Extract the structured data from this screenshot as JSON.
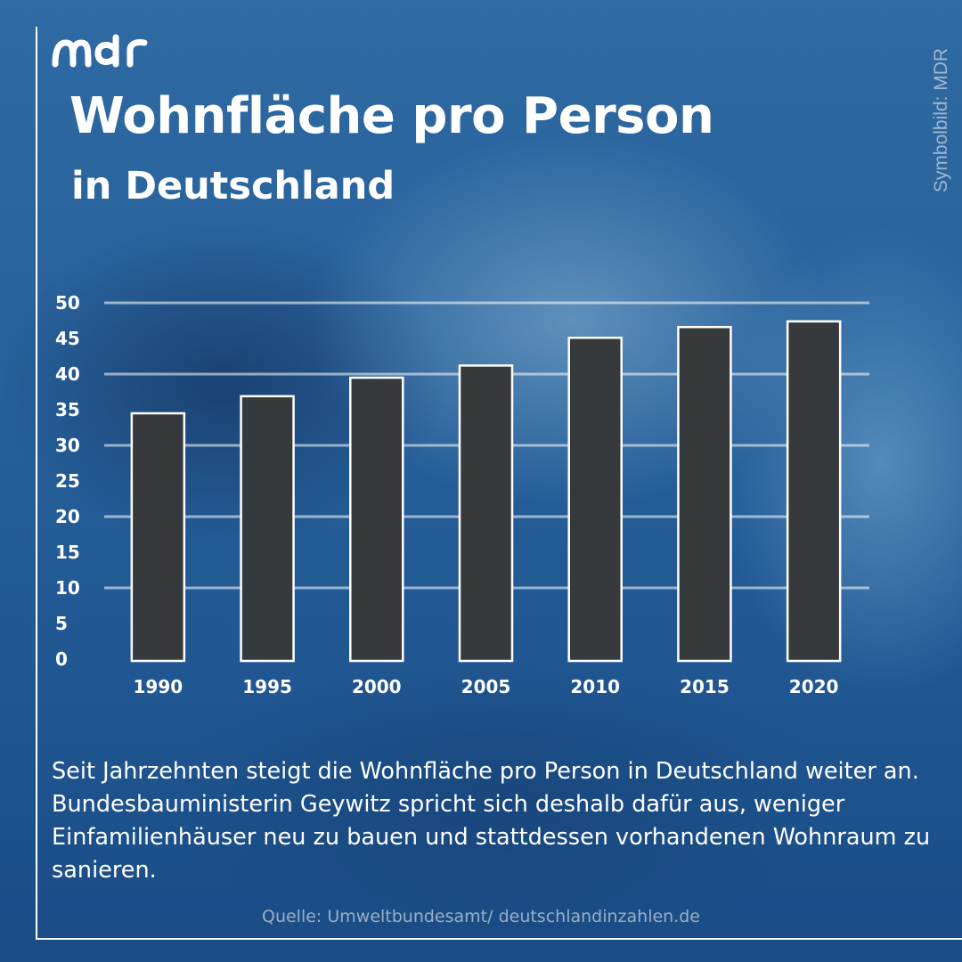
{
  "header": {
    "logo": "mdr",
    "title": "Wohnfläche pro Person",
    "subtitle": "in Deutschland",
    "image_credit": "Symbolbild: MDR"
  },
  "chart_data": {
    "type": "bar",
    "title": "Wohnfläche pro Person in Deutschland",
    "xlabel": "",
    "ylabel": "",
    "categories": [
      "1990",
      "1995",
      "2000",
      "2005",
      "2010",
      "2015",
      "2020"
    ],
    "values": [
      34.5,
      36.9,
      39.5,
      41.2,
      45.1,
      46.6,
      47.4
    ],
    "ylim": [
      0,
      50
    ],
    "yticks": [
      0,
      5,
      10,
      15,
      20,
      25,
      30,
      35,
      40,
      45,
      50
    ],
    "grid": true,
    "legend": "none",
    "colors": {
      "bar_fill": "#363a3d",
      "bar_stroke": "#ffffff",
      "grid": "#ffffff"
    }
  },
  "body": {
    "text": "Seit Jahrzehnten steigt die Wohnfläche pro Person in Deutschland weiter an. Bundesbauministerin Geywitz spricht sich deshalb dafür aus, weniger Einfamilienhäuser neu zu bauen und stattdessen vorhandenen Wohnraum zu sanieren."
  },
  "footer": {
    "source": "Quelle: Umweltbundesamt/ deutschlandinzahlen.de"
  }
}
